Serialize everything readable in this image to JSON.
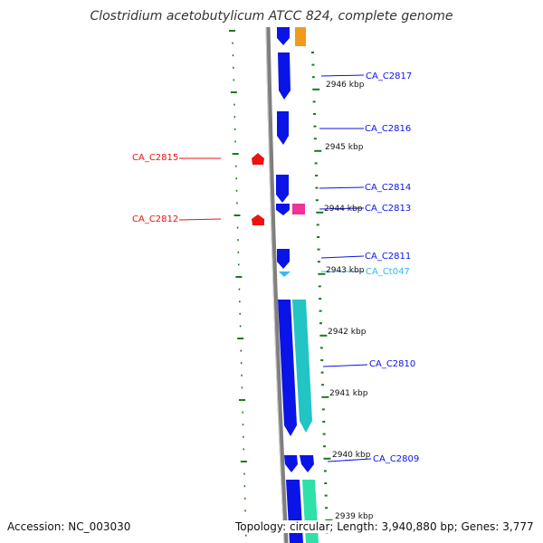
{
  "title": "Clostridium acetobutylicum ATCC 824, complete genome",
  "footer": {
    "accession": "Accession: NC_003030",
    "topology": "Topology: circular; Length: 3,940,880 bp; Genes: 3,777"
  },
  "colors": {
    "cds": "#0b14e6",
    "reverse_gene": "#ee1111",
    "rna": "#ee3399",
    "trna": "#33bbee",
    "orange_feature": "#f29a1b",
    "teal_feature": "#22c4c4",
    "mint_feature": "#2fe0a8",
    "backbone": "#7f7f7f",
    "tick": "#1a7a1a"
  },
  "scale_labels": [
    "2946 kbp",
    "2945 kbp",
    "2944 kbp",
    "2943 kbp",
    "2942 kbp",
    "2941 kbp",
    "2940 kbp",
    "2939 kbp"
  ],
  "gene_labels": [
    "CA_C2817",
    "CA_C2816",
    "CA_C2815",
    "CA_C2814",
    "CA_C2813",
    "CA_C2812",
    "CA_C2811",
    "CA_Ct047",
    "CA_C2810",
    "CA_C2809"
  ]
}
